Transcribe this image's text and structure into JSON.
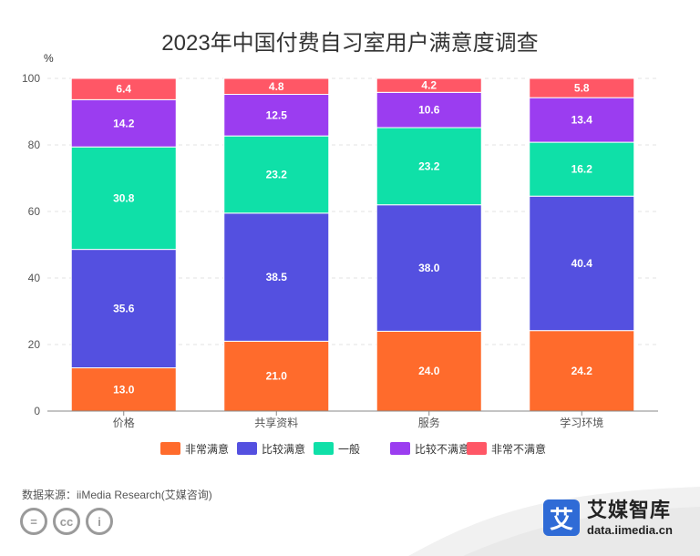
{
  "header": {
    "title": "2023年中国付费自习室用户满意度调查"
  },
  "chart_data": {
    "type": "bar",
    "stacked": true,
    "title": "2023年中国付费自习室用户满意度调查",
    "ylabel": "%",
    "ylim": [
      0,
      100
    ],
    "yticks": [
      0,
      20,
      40,
      60,
      80,
      100
    ],
    "grid": true,
    "legend_position": "bottom",
    "categories": [
      "价格",
      "共享资料",
      "服务",
      "学习环境"
    ],
    "series": [
      {
        "name": "非常满意",
        "color": "#ff6b2c",
        "values": [
          13.0,
          21.0,
          24.0,
          24.2
        ],
        "labels": [
          "13.0",
          "21.0",
          "24.0",
          "24.2"
        ]
      },
      {
        "name": "比较满意",
        "color": "#5450e0",
        "values": [
          35.6,
          38.5,
          38.0,
          40.4
        ],
        "labels": [
          "35.6",
          "38.5",
          "38.0",
          "40.4"
        ]
      },
      {
        "name": "一般",
        "color": "#0fe0a8",
        "values": [
          30.8,
          23.2,
          23.2,
          16.2
        ],
        "labels": [
          "30.8",
          "23.2",
          "23.2",
          "16.2"
        ]
      },
      {
        "name": "比较不满意",
        "color": "#9b3df0",
        "values": [
          14.2,
          12.5,
          10.6,
          13.4
        ],
        "labels": [
          "14.2",
          "12.5",
          "10.6",
          "13.4"
        ]
      },
      {
        "name": "非常不满意",
        "color": "#ff5766",
        "values": [
          6.4,
          4.8,
          4.2,
          5.8
        ],
        "labels": [
          "6.4",
          "4.8",
          "4.2",
          "5.8"
        ]
      }
    ]
  },
  "footer": {
    "source": "数据来源：iiMedia Research(艾媒咨询)",
    "license_icons": [
      "equal-icon",
      "cc-icon",
      "person-icon"
    ],
    "license_glyphs": [
      "=",
      "cc",
      "i"
    ]
  },
  "brand": {
    "logo_glyph": "艾",
    "name": "艾媒智库",
    "url": "data.iimedia.cn",
    "color": "#2f6bd6"
  }
}
